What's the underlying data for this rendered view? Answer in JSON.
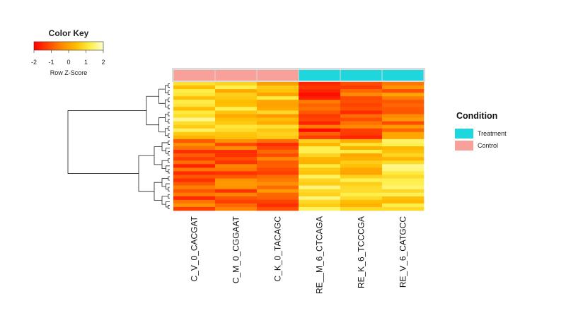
{
  "chart_data": {
    "type": "heatmap",
    "color_key": {
      "title": "Color Key",
      "subtitle": "Row Z-Score",
      "range": [
        -2,
        2
      ],
      "ticks": [
        "-2",
        "-1",
        "0",
        "1",
        "2"
      ],
      "colors": [
        "#ff0000",
        "#ff4400",
        "#ff8800",
        "#ffbb00",
        "#ffee44",
        "#ffffcc"
      ]
    },
    "columns": [
      "C_V_0_CACGAT",
      "C_M_0_CGGAAT",
      "C_K_0_TACAGC",
      "RE__M_6_CTCAGA",
      "RE_K_6_TCCCGA",
      "RE_V_6_CATGCC"
    ],
    "column_condition": [
      "Control",
      "Control",
      "Control",
      "Treatment",
      "Treatment",
      "Treatment"
    ],
    "legend": {
      "title": "Condition",
      "items": [
        {
          "label": "Treatment",
          "color": "#1ed6dc"
        },
        {
          "label": "Control",
          "color": "#f7a19a"
        }
      ]
    },
    "row_clusters": [
      {
        "rows": 16,
        "pattern": [
          1.0,
          0.7,
          0.5,
          -1.2,
          -1.0,
          -0.6
        ]
      },
      {
        "rows": 20,
        "pattern": [
          -0.9,
          -0.8,
          -0.8,
          0.8,
          0.7,
          1.0
        ]
      }
    ]
  }
}
